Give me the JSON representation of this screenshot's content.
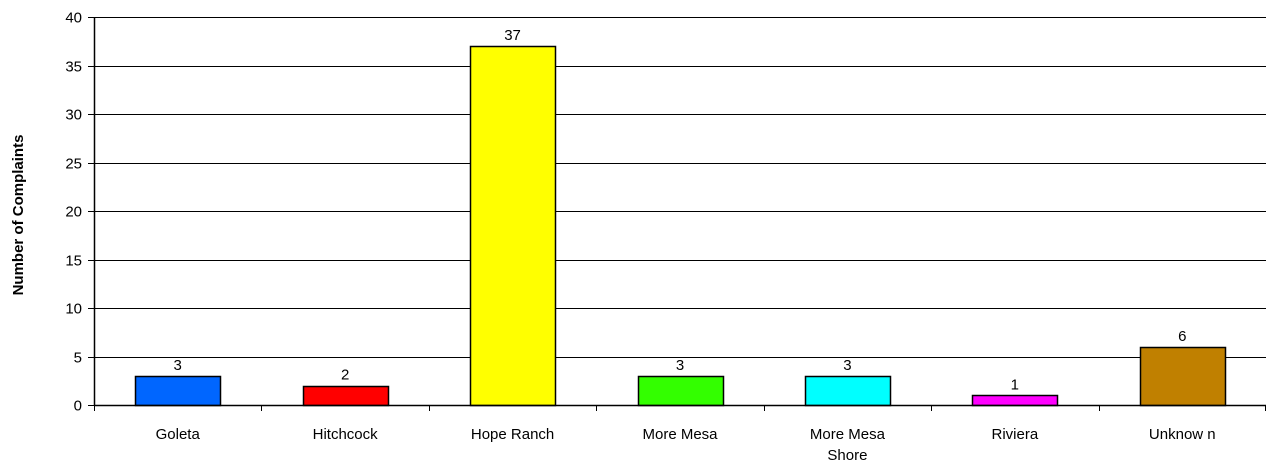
{
  "chart_data": {
    "type": "bar",
    "title": "",
    "xlabel": "",
    "ylabel": "Number of Complaints",
    "categories": [
      [
        "Goleta"
      ],
      [
        "Hitchcock"
      ],
      [
        "Hope Ranch"
      ],
      [
        "More Mesa"
      ],
      [
        "More Mesa",
        "Shore"
      ],
      [
        "Riviera"
      ],
      [
        "Unknow n"
      ]
    ],
    "values": [
      3,
      2,
      37,
      3,
      3,
      1,
      6
    ],
    "colors": [
      "#0066FF",
      "#FF0000",
      "#FFFF00",
      "#33FF00",
      "#00FFFF",
      "#FF00FF",
      "#C08000"
    ],
    "ylim": [
      0,
      40
    ],
    "yticks": [
      0,
      5,
      10,
      15,
      20,
      25,
      30,
      35,
      40
    ],
    "grid": true,
    "legend": "none"
  }
}
